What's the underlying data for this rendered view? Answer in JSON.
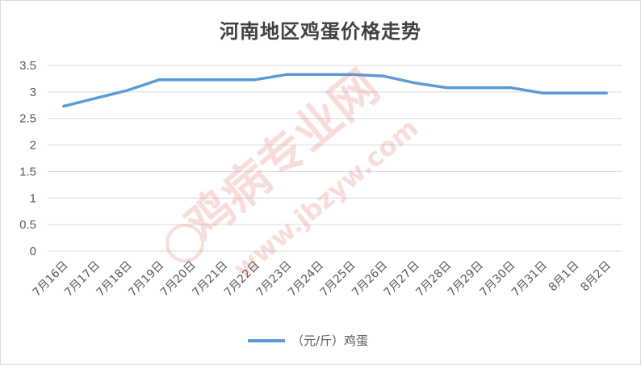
{
  "chart_data": {
    "type": "line",
    "title": "河南地区鸡蛋价格走势",
    "categories": [
      "7月16日",
      "7月17日",
      "7月18日",
      "7月19日",
      "7月20日",
      "7月21日",
      "7月22日",
      "7月23日",
      "7月24日",
      "7月25日",
      "7月26日",
      "7月27日",
      "7月28日",
      "7月29日",
      "7月30日",
      "7月31日",
      "8月1日",
      "8月2日"
    ],
    "series": [
      {
        "name": "（元/斤）鸡蛋",
        "color": "#5b9bd5",
        "values": [
          2.73,
          2.88,
          3.03,
          3.23,
          3.23,
          3.23,
          3.23,
          3.33,
          3.33,
          3.33,
          3.3,
          3.17,
          3.08,
          3.08,
          3.08,
          2.98,
          2.98,
          2.98
        ]
      }
    ],
    "ylim": [
      0,
      3.5
    ],
    "yticks": [
      0,
      0.5,
      1,
      1.5,
      2,
      2.5,
      3,
      3.5
    ],
    "ytick_labels": [
      "0",
      "0.5",
      "1",
      "1.5",
      "2",
      "2.5",
      "3",
      "3.5"
    ],
    "grid": "horizontal",
    "legend": "bottom",
    "gridline_color": "#d9d9d9"
  },
  "watermark": {
    "text": "鸡病专业网",
    "url": "www.jbzyw.com",
    "color": "#e46a5f"
  }
}
